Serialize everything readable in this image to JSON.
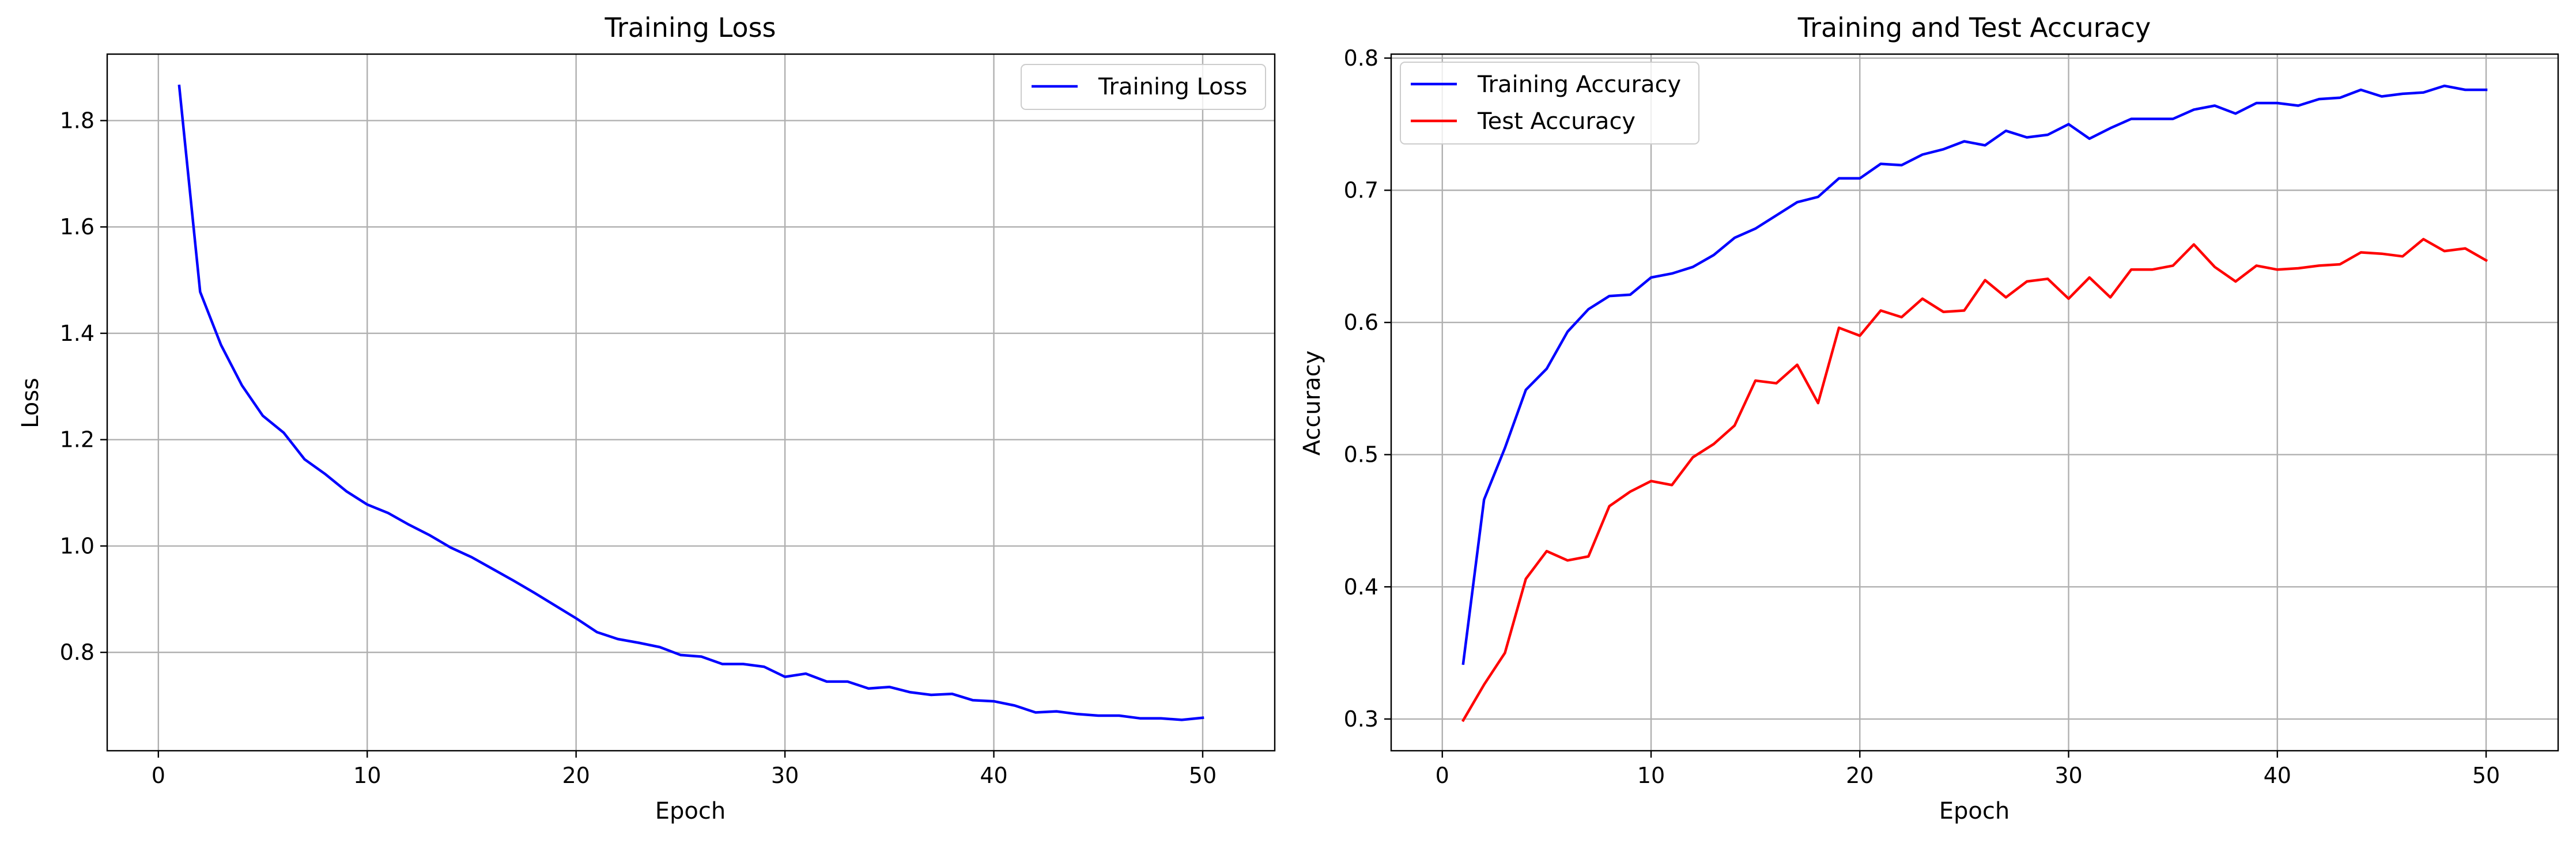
{
  "chart_data": [
    {
      "type": "line",
      "title": "Training Loss",
      "xlabel": "Epoch",
      "ylabel": "Loss",
      "xlim": [
        -2.45,
        53.45
      ],
      "ylim": [
        0.615,
        1.925
      ],
      "xticks": [
        0,
        10,
        20,
        30,
        40,
        50
      ],
      "yticks": [
        0.8,
        1.0,
        1.2,
        1.4,
        1.6,
        1.8
      ],
      "xtick_labels": [
        "0",
        "10",
        "20",
        "30",
        "40",
        "50"
      ],
      "ytick_labels": [
        "0.8",
        "1.0",
        "1.2",
        "1.4",
        "1.6",
        "1.8"
      ],
      "grid": true,
      "legend": "upper right",
      "x": [
        1,
        2,
        3,
        4,
        5,
        6,
        7,
        8,
        9,
        10,
        11,
        12,
        13,
        14,
        15,
        16,
        17,
        18,
        19,
        20,
        21,
        22,
        23,
        24,
        25,
        26,
        27,
        28,
        29,
        30,
        31,
        32,
        33,
        34,
        35,
        36,
        37,
        38,
        39,
        40,
        41,
        42,
        43,
        44,
        45,
        46,
        47,
        48,
        49,
        50
      ],
      "series": [
        {
          "name": "Training Loss",
          "color": "#0000ff",
          "values": [
            1.865,
            1.478,
            1.378,
            1.302,
            1.245,
            1.213,
            1.163,
            1.135,
            1.103,
            1.078,
            1.062,
            1.04,
            1.02,
            0.997,
            0.979,
            0.957,
            0.935,
            0.912,
            0.888,
            0.864,
            0.838,
            0.825,
            0.818,
            0.81,
            0.795,
            0.792,
            0.778,
            0.778,
            0.773,
            0.754,
            0.76,
            0.745,
            0.745,
            0.732,
            0.735,
            0.725,
            0.72,
            0.722,
            0.71,
            0.708,
            0.7,
            0.687,
            0.689,
            0.684,
            0.681,
            0.681,
            0.676,
            0.676,
            0.673,
            0.677
          ]
        }
      ]
    },
    {
      "type": "line",
      "title": "Training and Test Accuracy",
      "xlabel": "Epoch",
      "ylabel": "Accuracy",
      "xlim": [
        -2.45,
        53.45
      ],
      "ylim": [
        0.276,
        0.803
      ],
      "xticks": [
        0,
        10,
        20,
        30,
        40,
        50
      ],
      "yticks": [
        0.3,
        0.4,
        0.5,
        0.6,
        0.7,
        0.8
      ],
      "xtick_labels": [
        "0",
        "10",
        "20",
        "30",
        "40",
        "50"
      ],
      "ytick_labels": [
        "0.3",
        "0.4",
        "0.5",
        "0.6",
        "0.7",
        "0.8"
      ],
      "grid": true,
      "legend": "upper left",
      "x": [
        1,
        2,
        3,
        4,
        5,
        6,
        7,
        8,
        9,
        10,
        11,
        12,
        13,
        14,
        15,
        16,
        17,
        18,
        19,
        20,
        21,
        22,
        23,
        24,
        25,
        26,
        27,
        28,
        29,
        30,
        31,
        32,
        33,
        34,
        35,
        36,
        37,
        38,
        39,
        40,
        41,
        42,
        43,
        44,
        45,
        46,
        47,
        48,
        49,
        50
      ],
      "series": [
        {
          "name": "Training Accuracy",
          "color": "#0000ff",
          "values": [
            0.342,
            0.466,
            0.505,
            0.549,
            0.565,
            0.593,
            0.61,
            0.62,
            0.621,
            0.634,
            0.637,
            0.642,
            0.651,
            0.664,
            0.671,
            0.681,
            0.691,
            0.695,
            0.709,
            0.709,
            0.72,
            0.719,
            0.727,
            0.731,
            0.737,
            0.734,
            0.745,
            0.74,
            0.742,
            0.75,
            0.739,
            0.747,
            0.754,
            0.754,
            0.754,
            0.761,
            0.764,
            0.758,
            0.766,
            0.766,
            0.764,
            0.769,
            0.77,
            0.776,
            0.771,
            0.773,
            0.774,
            0.779,
            0.776,
            0.776
          ]
        },
        {
          "name": "Test Accuracy",
          "color": "#ff0000",
          "values": [
            0.299,
            0.326,
            0.35,
            0.406,
            0.427,
            0.42,
            0.423,
            0.461,
            0.472,
            0.48,
            0.477,
            0.498,
            0.508,
            0.522,
            0.556,
            0.554,
            0.568,
            0.539,
            0.596,
            0.59,
            0.609,
            0.604,
            0.618,
            0.608,
            0.609,
            0.632,
            0.619,
            0.631,
            0.633,
            0.618,
            0.634,
            0.619,
            0.64,
            0.64,
            0.643,
            0.659,
            0.642,
            0.631,
            0.643,
            0.64,
            0.641,
            0.643,
            0.644,
            0.653,
            0.652,
            0.65,
            0.663,
            0.654,
            0.656,
            0.647
          ]
        }
      ]
    }
  ]
}
